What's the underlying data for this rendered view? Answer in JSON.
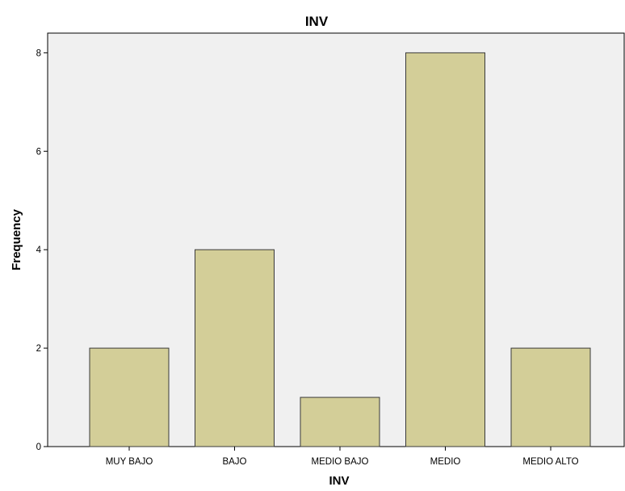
{
  "chart_data": {
    "type": "bar",
    "title": "INV",
    "xlabel": "INV",
    "ylabel": "Frequency",
    "categories": [
      "MUY BAJO",
      "BAJO",
      "MEDIO BAJO",
      "MEDIO",
      "MEDIO ALTO"
    ],
    "values": [
      2,
      4,
      1,
      8,
      2
    ],
    "ylim": [
      0,
      8.4
    ],
    "yticks": [
      "0",
      "2",
      "4",
      "6",
      "8"
    ],
    "grid": false,
    "colors": {
      "bar_fill": "#d3ce98",
      "bar_stroke": "#3a3a3a",
      "plot_background": "#f0f0f0",
      "axis": "#000000"
    }
  }
}
